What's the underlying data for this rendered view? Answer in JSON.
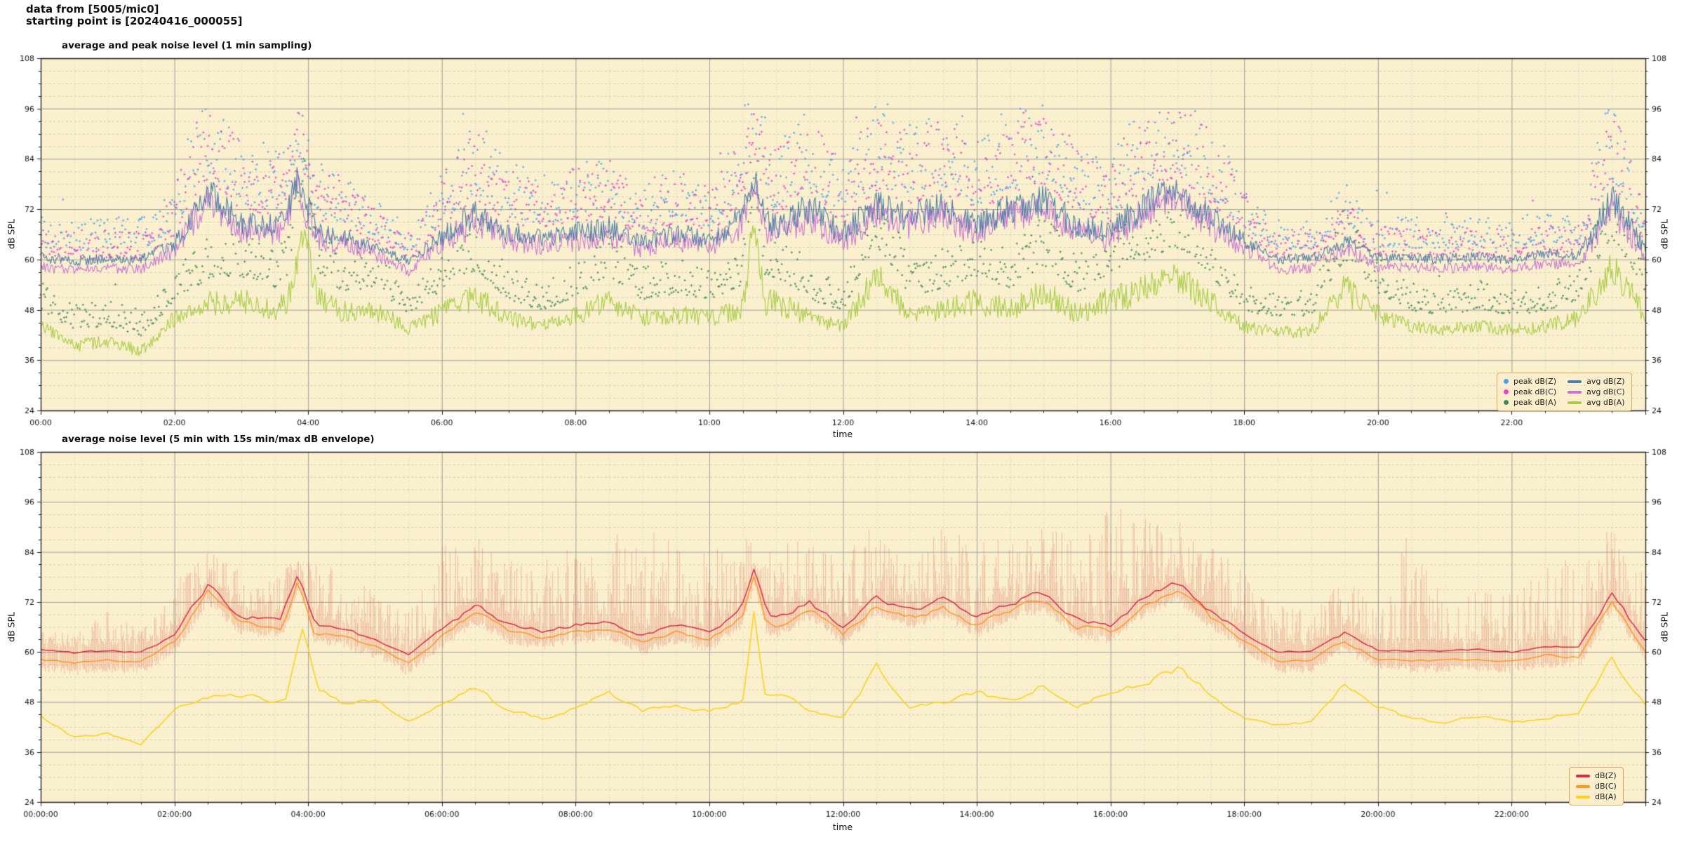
{
  "header": {
    "line1": "data from [5005/mic0]",
    "line2": "starting point is [20240416_000055]"
  },
  "palette": {
    "figure_bg": "#ffffff",
    "plot_bg": "#faf0cd",
    "grid_major": "#9e9e9e",
    "grid_minor_h": "#c4c4c4",
    "grid_minor_v": "#d2d2cc",
    "frame": "#1a1a1a",
    "tick_text": "#111111",
    "legend_bg": "#fbeecd",
    "legend_border": "#dba85f"
  },
  "chart_data": [
    {
      "type": "line",
      "title": "average and peak noise level (1 min sampling)",
      "xlabel": "time",
      "ylabel_left": "dB SPL",
      "ylabel_right": "dB SPL",
      "x_hours": [
        0,
        24
      ],
      "ylim": [
        24,
        108
      ],
      "x_major_h": 2,
      "x_minor_h": 0.5,
      "y_major_db": 12,
      "y_minor_db": 3,
      "grid": true,
      "xtick_labels": [
        "00:00",
        "02:00",
        "04:00",
        "06:00",
        "08:00",
        "10:00",
        "12:00",
        "14:00",
        "16:00",
        "18:00",
        "20:00",
        "22:00"
      ],
      "ytick_labels": [
        24,
        36,
        48,
        60,
        72,
        84,
        96,
        108
      ],
      "sample_step_min": 1,
      "anchor_step_h": 0.5,
      "series": [
        {
          "name": "avg dB(C)",
          "kind": "line",
          "color": "#c973d6",
          "width": 1.1,
          "noise_amp": 3.2,
          "quiet_db": 58,
          "act_div": 8,
          "act_min": 0.18,
          "anchors": [
            58.2,
            57.4,
            58,
            57.7,
            62.3,
            74.3,
            66.8,
            66.3,
            65.3,
            63.8,
            61.3,
            57.2,
            63.8,
            69.3,
            64.8,
            63.3,
            64.8,
            65.8,
            62.3,
            64.8,
            62.8,
            68.3,
            66.3,
            70.3,
            64.3,
            71.3,
            68.3,
            70.8,
            66.3,
            70.3,
            72.3,
            66.3,
            64.8,
            71.3,
            74.8,
            68.3,
            62.8,
            57.7,
            57.9,
            62.8,
            58.2,
            58,
            57.9,
            58.3,
            57.7,
            59.2,
            58.7,
            72.3,
            60.4
          ],
          "spikes": [
            {
              "t": 3.85,
              "v": 77.5,
              "w": 14
            },
            {
              "t": 10.67,
              "v": 78,
              "w": 11
            }
          ]
        },
        {
          "name": "avg dB(A)",
          "kind": "line",
          "color": "#a8cc44",
          "width": 1.1,
          "noise_amp": 3.2,
          "quiet_db": 41,
          "act_div": 9,
          "act_min": 0.3,
          "anchors": [
            44.5,
            39.5,
            40.5,
            38.2,
            46,
            49.5,
            50,
            48,
            52,
            47.5,
            48,
            43.5,
            47.5,
            51,
            46,
            44,
            46.5,
            50,
            46,
            47,
            46,
            48.5,
            50,
            46,
            44,
            56.5,
            46.5,
            48,
            50,
            48,
            52,
            47,
            50.5,
            53,
            56,
            50,
            44,
            42.5,
            43,
            53,
            47,
            44,
            43,
            44.5,
            43,
            44,
            46,
            58.5,
            47
          ],
          "spikes": [
            {
              "t": 3.92,
              "v": 66,
              "w": 14
            },
            {
              "t": 10.67,
              "v": 70,
              "w": 10
            }
          ]
        },
        {
          "name": "avg dB(Z)",
          "kind": "line",
          "color": "#4d7fa8",
          "width": 1.1,
          "noise_amp": 3.2,
          "quiet_db": 60.5,
          "act_div": 8,
          "act_min": 0.18,
          "anchors": [
            60.5,
            59.7,
            60.3,
            60,
            64,
            76,
            68.5,
            68,
            67,
            65.5,
            63,
            59.5,
            65.5,
            71,
            66.5,
            65,
            66.5,
            67.5,
            64,
            66.5,
            64.5,
            70,
            68,
            72,
            66,
            73,
            70,
            72.5,
            68,
            72,
            74,
            68,
            66.5,
            73,
            76.5,
            70,
            64.5,
            60,
            60.2,
            64.5,
            60.5,
            60.3,
            60.2,
            60.6,
            60,
            61.5,
            61,
            74,
            62.5
          ],
          "spikes": [
            {
              "t": 3.85,
              "v": 79,
              "w": 16
            },
            {
              "t": 10.67,
              "v": 80,
              "w": 12
            }
          ]
        },
        {
          "name": "peak dB(Z)",
          "kind": "scatter",
          "color": "#4aa0f0",
          "base_series": 2,
          "offset": 4.5,
          "spread": 16,
          "cap": 97,
          "skip": 0.12
        },
        {
          "name": "peak dB(C)",
          "kind": "scatter",
          "color": "#e83fd0",
          "base_series": 0,
          "offset": 4.5,
          "spread": 15,
          "cap": 95,
          "skip": 0.12
        },
        {
          "name": "peak dB(A)",
          "kind": "scatter",
          "color": "#3d8a5a",
          "base_series": 1,
          "offset": 6,
          "spread": 11,
          "cap": 84,
          "skip": 0.12
        }
      ],
      "legend": [
        {
          "label": "peak dB(Z)",
          "marker": "dot",
          "color": "#4aa0f0"
        },
        {
          "label": "avg dB(Z)",
          "marker": "line",
          "color": "#4d7fa8"
        },
        {
          "label": "peak dB(C)",
          "marker": "dot",
          "color": "#e83fd0"
        },
        {
          "label": "avg dB(C)",
          "marker": "line",
          "color": "#c973d6"
        },
        {
          "label": "peak dB(A)",
          "marker": "dot",
          "color": "#3d8a5a"
        },
        {
          "label": "avg dB(A)",
          "marker": "line",
          "color": "#a8cc44"
        }
      ]
    },
    {
      "type": "line",
      "title": "average noise level (5 min with 15s min/max dB envelope)",
      "xlabel": "time",
      "ylabel_left": "dB SPL",
      "ylabel_right": "dB SPL",
      "x_hours": [
        0,
        24
      ],
      "ylim": [
        24,
        108
      ],
      "x_major_h": 2,
      "x_minor_h": 0.5,
      "y_major_db": 12,
      "y_minor_db": 3,
      "grid": true,
      "xtick_labels": [
        "00:00:00",
        "02:00:00",
        "04:00:00",
        "06:00:00",
        "08:00:00",
        "10:00:00",
        "12:00:00",
        "14:00:00",
        "16:00:00",
        "18:00:00",
        "20:00:00",
        "22:00:00"
      ],
      "ytick_labels": [
        24,
        36,
        48,
        60,
        72,
        84,
        96,
        108
      ],
      "sample_step_min": 5,
      "anchor_step_h": 0.5,
      "series": [
        {
          "name": "15s min/max envelope",
          "kind": "band",
          "color": "rgba(219,84,74,0.33)",
          "top_ref": 3,
          "bottom_ref": 1,
          "step_min": 1,
          "skip": 0.1,
          "max_anchors": [
            66,
            64,
            70,
            65,
            78,
            84,
            80,
            78,
            85,
            78,
            75,
            70,
            86,
            88,
            84,
            82,
            86,
            88,
            90,
            86,
            84,
            88,
            86,
            88,
            84,
            92,
            88,
            90,
            86,
            90,
            92,
            88,
            96,
            94,
            92,
            88,
            80,
            72,
            70,
            78,
            74,
            90,
            72,
            76,
            74,
            80,
            84,
            90,
            78
          ]
        },
        {
          "name": "dB(C)",
          "kind": "line",
          "color": "#fd9626",
          "width": 1.5,
          "noise_amp": 1.1,
          "quiet_db": 58,
          "act_div": 8,
          "act_min": 0.15,
          "smooth": true,
          "anchors": [
            58.2,
            57.4,
            58,
            57.7,
            62.3,
            74.3,
            66.8,
            66.3,
            65.3,
            63.8,
            61.3,
            57.2,
            63.8,
            69.3,
            64.8,
            63.3,
            64.8,
            65.8,
            62.3,
            64.8,
            62.8,
            68.3,
            66.3,
            70.3,
            64.3,
            71.3,
            68.3,
            70.8,
            66.3,
            70.3,
            72.3,
            66.3,
            64.8,
            71.3,
            74.8,
            68.3,
            62.8,
            57.7,
            57.9,
            62.8,
            58.2,
            58,
            57.9,
            58.3,
            57.7,
            59.2,
            58.7,
            72.3,
            60.4
          ],
          "spikes": [
            {
              "t": 3.85,
              "v": 77.5,
              "w": 14
            },
            {
              "t": 10.67,
              "v": 78,
              "w": 11
            }
          ]
        },
        {
          "name": "dB(A)",
          "kind": "line",
          "color": "#fcd116",
          "width": 1.5,
          "noise_amp": 1.3,
          "quiet_db": 41,
          "act_div": 9,
          "act_min": 0.3,
          "smooth": true,
          "anchors": [
            44.5,
            39.5,
            40.5,
            38.2,
            46,
            49.5,
            50,
            48,
            52,
            47.5,
            48,
            43.5,
            47.5,
            51,
            46,
            44,
            46.5,
            50,
            46,
            47,
            46,
            48.5,
            50,
            46,
            44,
            56.5,
            46.5,
            48,
            50,
            48,
            52,
            47,
            50.5,
            53,
            56,
            50,
            44,
            42.5,
            43,
            53,
            47,
            44,
            43,
            44.5,
            43,
            44,
            46,
            58.5,
            47
          ],
          "spikes": [
            {
              "t": 3.92,
              "v": 66,
              "w": 14
            },
            {
              "t": 10.67,
              "v": 70,
              "w": 10
            }
          ]
        },
        {
          "name": "dB(Z)",
          "kind": "line",
          "color": "#d92b45",
          "width": 1.5,
          "noise_amp": 1.1,
          "quiet_db": 60.5,
          "act_div": 8,
          "act_min": 0.15,
          "smooth": true,
          "anchors": [
            60.5,
            59.7,
            60.3,
            60,
            64,
            76,
            68.5,
            68,
            67,
            65.5,
            63,
            59.5,
            65.5,
            71,
            66.5,
            65,
            66.5,
            67.5,
            64,
            66.5,
            64.5,
            70,
            68,
            72,
            66,
            73,
            70,
            72.5,
            68,
            72,
            74,
            68,
            66.5,
            73,
            76.5,
            70,
            64.5,
            60,
            60.2,
            64.5,
            60.5,
            60.3,
            60.2,
            60.6,
            60,
            61.5,
            61,
            74,
            62.5
          ],
          "spikes": [
            {
              "t": 3.85,
              "v": 79,
              "w": 16
            },
            {
              "t": 10.67,
              "v": 80,
              "w": 12
            }
          ]
        }
      ],
      "legend": [
        {
          "label": "dB(Z)",
          "marker": "line",
          "color": "#d92b45"
        },
        {
          "label": "dB(C)",
          "marker": "line",
          "color": "#fd9626"
        },
        {
          "label": "dB(A)",
          "marker": "line",
          "color": "#fcd116"
        }
      ]
    }
  ],
  "seed": 20240416
}
